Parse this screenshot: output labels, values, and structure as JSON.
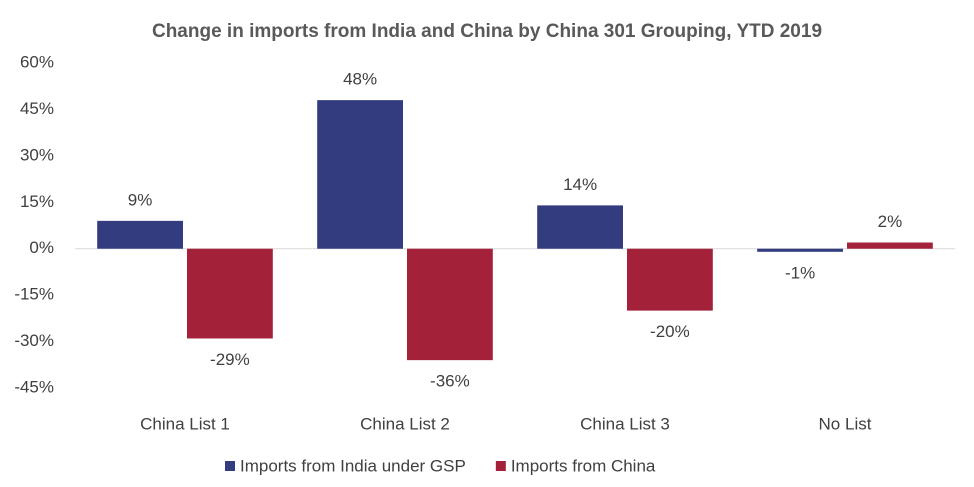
{
  "chart_data": {
    "type": "bar",
    "title": "Change in imports from India and China by China 301 Grouping, YTD 2019",
    "categories": [
      "China List 1",
      "China List 2",
      "China List 3",
      "No List"
    ],
    "series": [
      {
        "name": "Imports from India under GSP",
        "color": "#323c7e",
        "values": [
          9,
          48,
          14,
          -1
        ],
        "value_labels": [
          "9%",
          "48%",
          "14%",
          "-1%"
        ]
      },
      {
        "name": "Imports from China",
        "color": "#a4213a",
        "values": [
          -29,
          -36,
          -20,
          2
        ],
        "value_labels": [
          "-29%",
          "-36%",
          "-20%",
          "2%"
        ]
      }
    ],
    "ylim": [
      -45,
      60
    ],
    "yticks": [
      {
        "value": 60,
        "label": "60%"
      },
      {
        "value": 45,
        "label": "45%"
      },
      {
        "value": 30,
        "label": "30%"
      },
      {
        "value": 15,
        "label": "15%"
      },
      {
        "value": 0,
        "label": "0%"
      },
      {
        "value": -15,
        "label": "-15%"
      },
      {
        "value": -30,
        "label": "-30%"
      },
      {
        "value": -45,
        "label": "-45%"
      }
    ],
    "grid": false,
    "legend": "bottom"
  }
}
